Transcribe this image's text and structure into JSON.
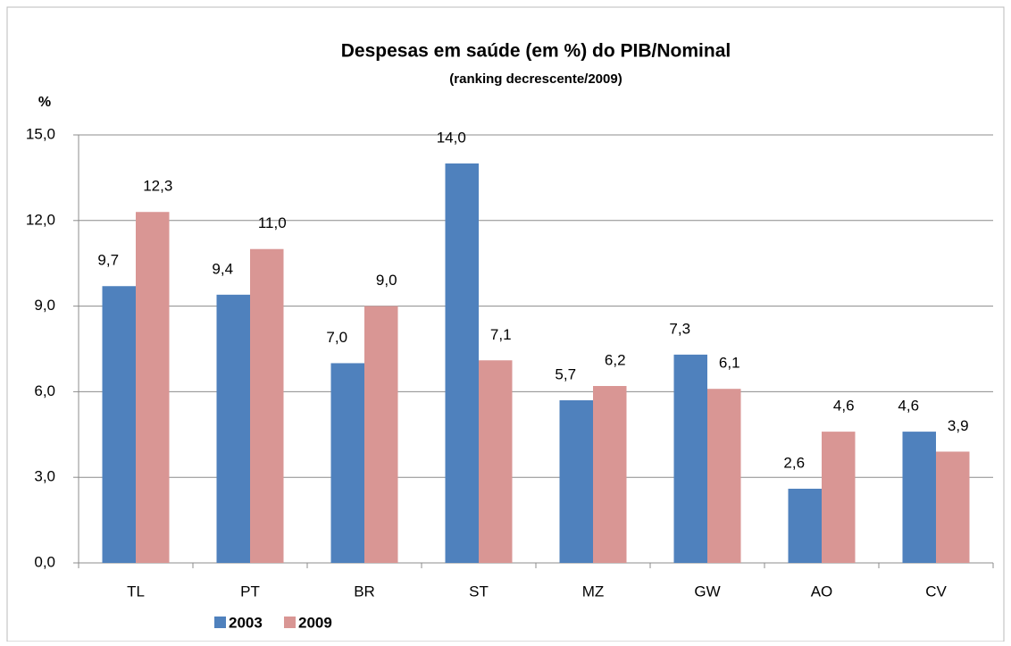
{
  "chart_data": {
    "type": "bar",
    "title": "Despesas em saúde (em %) do PIB/Nominal",
    "subtitle": "(ranking decrescente/2009)",
    "y_label": "%",
    "categories": [
      "TL",
      "PT",
      "BR",
      "ST",
      "MZ",
      "GW",
      "AO",
      "CV"
    ],
    "series": [
      {
        "name": "2003",
        "color": "#4f81bd",
        "values": [
          9.7,
          9.4,
          7.0,
          14.0,
          5.7,
          7.3,
          2.6,
          4.6
        ],
        "value_labels": [
          "9,7",
          "9,4",
          "7,0",
          "14,0",
          "5,7",
          "7,3",
          "2,6",
          "4,6"
        ]
      },
      {
        "name": "2009",
        "color": "#d99694",
        "values": [
          12.3,
          11.0,
          9.0,
          7.1,
          6.2,
          6.1,
          4.6,
          3.9
        ],
        "value_labels": [
          "12,3",
          "11,0",
          "9,0",
          "7,1",
          "6,2",
          "6,1",
          "4,6",
          "3,9"
        ]
      }
    ],
    "ylim": [
      0,
      15
    ],
    "yticks": [
      {
        "value": 0,
        "label": "0,0"
      },
      {
        "value": 3,
        "label": "3,0"
      },
      {
        "value": 6,
        "label": "6,0"
      },
      {
        "value": 9,
        "label": "9,0"
      },
      {
        "value": 12,
        "label": "12,0"
      },
      {
        "value": 15,
        "label": "15,0"
      }
    ],
    "grid": true,
    "legend": "bottom"
  }
}
